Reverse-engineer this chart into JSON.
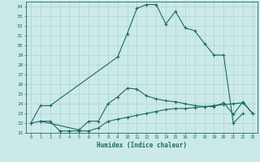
{
  "xlabel": "Humidex (Indice chaleur)",
  "bg_color": "#cce9e9",
  "grid_color": "#b0d8d8",
  "line_color": "#1a6b60",
  "ylim": [
    21,
    34.5
  ],
  "xlim": [
    -0.5,
    23.5
  ],
  "yticks": [
    21,
    22,
    23,
    24,
    25,
    26,
    27,
    28,
    29,
    30,
    31,
    32,
    33,
    34
  ],
  "xticks": [
    0,
    1,
    2,
    3,
    4,
    5,
    6,
    7,
    8,
    9,
    10,
    11,
    12,
    13,
    14,
    15,
    16,
    17,
    18,
    19,
    20,
    21,
    22,
    23
  ],
  "xtick_labels": [
    "0",
    "1",
    "2",
    "3",
    "4",
    "5",
    "6",
    "7",
    "8",
    "9",
    "10",
    "11",
    "12",
    "13",
    "14",
    "15",
    "16",
    "17",
    "18",
    "19",
    "20",
    "21",
    "22",
    "23"
  ],
  "curve1_x": [
    0,
    1,
    2,
    9,
    10,
    11,
    12,
    13,
    14,
    15,
    16,
    17,
    18,
    19,
    20,
    21,
    22
  ],
  "curve1_y": [
    22.0,
    23.8,
    23.8,
    28.8,
    31.2,
    33.8,
    34.2,
    34.2,
    32.2,
    33.5,
    31.8,
    31.5,
    30.2,
    29.0,
    29.0,
    22.0,
    23.0
  ],
  "curve2_x": [
    1,
    5,
    6,
    7,
    8,
    9,
    10,
    11,
    12,
    13,
    14,
    15,
    16,
    17,
    18,
    19,
    20,
    21,
    22,
    23
  ],
  "curve2_y": [
    22.2,
    21.3,
    22.2,
    22.2,
    24.0,
    24.7,
    25.6,
    25.5,
    24.8,
    24.5,
    24.3,
    24.2,
    24.0,
    23.8,
    23.7,
    23.7,
    24.1,
    22.9,
    24.2,
    23.0
  ],
  "curve3_x": [
    0,
    1,
    2,
    3,
    4,
    5,
    6,
    7,
    8,
    9,
    10,
    11,
    12,
    13,
    14,
    15,
    16,
    17,
    18,
    19,
    20,
    21,
    22,
    23
  ],
  "curve3_y": [
    22.0,
    22.2,
    22.2,
    21.2,
    21.2,
    21.2,
    21.2,
    21.5,
    22.2,
    22.4,
    22.6,
    22.8,
    23.0,
    23.2,
    23.4,
    23.5,
    23.5,
    23.6,
    23.7,
    23.8,
    23.9,
    24.0,
    24.1,
    23.0
  ]
}
